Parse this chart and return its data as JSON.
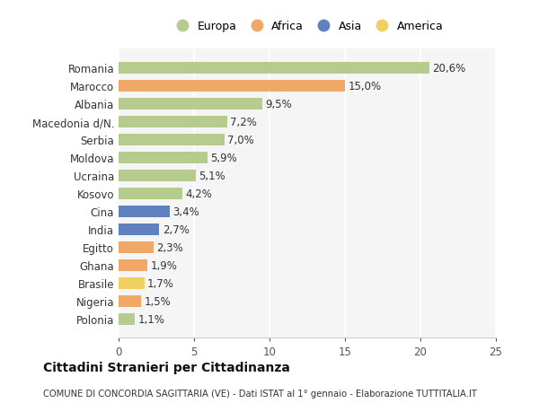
{
  "categories": [
    "Polonia",
    "Nigeria",
    "Brasile",
    "Ghana",
    "Egitto",
    "India",
    "Cina",
    "Kosovo",
    "Ucraina",
    "Moldova",
    "Serbia",
    "Macedonia d/N.",
    "Albania",
    "Marocco",
    "Romania"
  ],
  "values": [
    1.1,
    1.5,
    1.7,
    1.9,
    2.3,
    2.7,
    3.4,
    4.2,
    5.1,
    5.9,
    7.0,
    7.2,
    9.5,
    15.0,
    20.6
  ],
  "colors": [
    "#b5cc8e",
    "#f0a868",
    "#f0d060",
    "#f0a868",
    "#f0a868",
    "#6080c0",
    "#6080c0",
    "#b5cc8e",
    "#b5cc8e",
    "#b5cc8e",
    "#b5cc8e",
    "#b5cc8e",
    "#b5cc8e",
    "#f0a868",
    "#b5cc8e"
  ],
  "labels": [
    "1,1%",
    "1,5%",
    "1,7%",
    "1,9%",
    "2,3%",
    "2,7%",
    "3,4%",
    "4,2%",
    "5,1%",
    "5,9%",
    "7,0%",
    "7,2%",
    "9,5%",
    "15,0%",
    "20,6%"
  ],
  "legend_labels": [
    "Europa",
    "Africa",
    "Asia",
    "America"
  ],
  "legend_colors": [
    "#b5cc8e",
    "#f0a868",
    "#6080c0",
    "#f0d060"
  ],
  "title": "Cittadini Stranieri per Cittadinanza",
  "subtitle": "COMUNE DI CONCORDIA SAGITTARIA (VE) - Dati ISTAT al 1° gennaio - Elaborazione TUTTITALIA.IT",
  "xlim": [
    0,
    25
  ],
  "xticks": [
    0,
    5,
    10,
    15,
    20,
    25
  ],
  "bg_color": "#ffffff",
  "plot_bg_color": "#f5f5f5"
}
